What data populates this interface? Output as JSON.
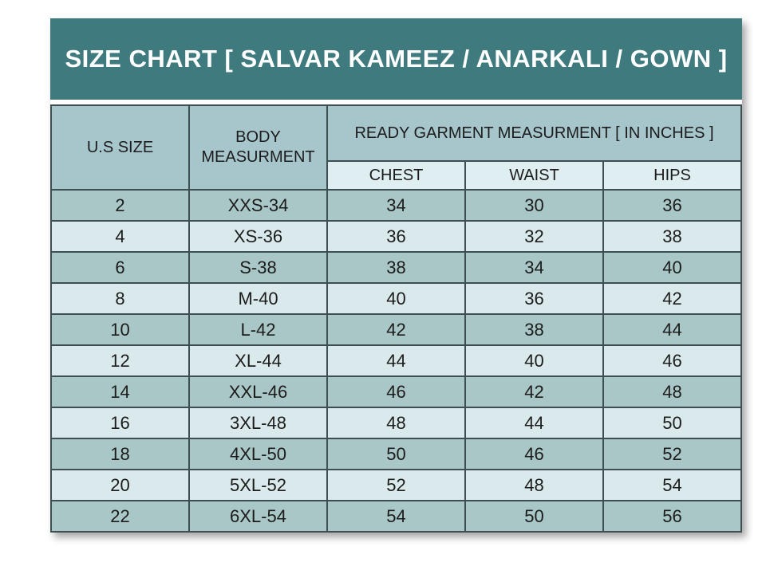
{
  "title": {
    "text": "SIZE CHART [ SALVAR KAMEEZ / ANARKALI / GOWN ]"
  },
  "table": {
    "header": {
      "us_size": "U.S SIZE",
      "body_measurement": "BODY MEASURMENT",
      "ready_garment": "READY GARMENT MEASURMENT [ IN INCHES ]",
      "sub": [
        "CHEST",
        "WAIST",
        "HIPS"
      ]
    }
  },
  "colors": {
    "page_bg": "#FFFFFF",
    "title_bg": "#3E7A7E",
    "title_text": "#FFFFFF",
    "header_bg": "#A6C6CC",
    "subheader_bg": "#DFEFF1",
    "row_dark": "#A9C7C7",
    "row_light": "#DAEAEC",
    "border": "#3E4F52",
    "text": "#1C1C1C"
  },
  "chart_data": {
    "type": "table",
    "title": "SIZE CHART [ SALVAR KAMEEZ / ANARKALI / GOWN ]",
    "units": "inches",
    "columns": [
      "U.S SIZE",
      "BODY MEASURMENT",
      "CHEST",
      "WAIST",
      "HIPS"
    ],
    "column_groups": [
      {
        "label": "READY GARMENT MEASURMENT [ IN INCHES ]",
        "columns": [
          "CHEST",
          "WAIST",
          "HIPS"
        ]
      }
    ],
    "rows": [
      [
        "2",
        "XXS-34",
        "34",
        "30",
        "36"
      ],
      [
        "4",
        "XS-36",
        "36",
        "32",
        "38"
      ],
      [
        "6",
        "S-38",
        "38",
        "34",
        "40"
      ],
      [
        "8",
        "M-40",
        "40",
        "36",
        "42"
      ],
      [
        "10",
        "L-42",
        "42",
        "38",
        "44"
      ],
      [
        "12",
        "XL-44",
        "44",
        "40",
        "46"
      ],
      [
        "14",
        "XXL-46",
        "46",
        "42",
        "48"
      ],
      [
        "16",
        "3XL-48",
        "48",
        "44",
        "50"
      ],
      [
        "18",
        "4XL-50",
        "50",
        "46",
        "52"
      ],
      [
        "20",
        "5XL-52",
        "52",
        "48",
        "54"
      ],
      [
        "22",
        "6XL-54",
        "54",
        "50",
        "56"
      ]
    ]
  }
}
